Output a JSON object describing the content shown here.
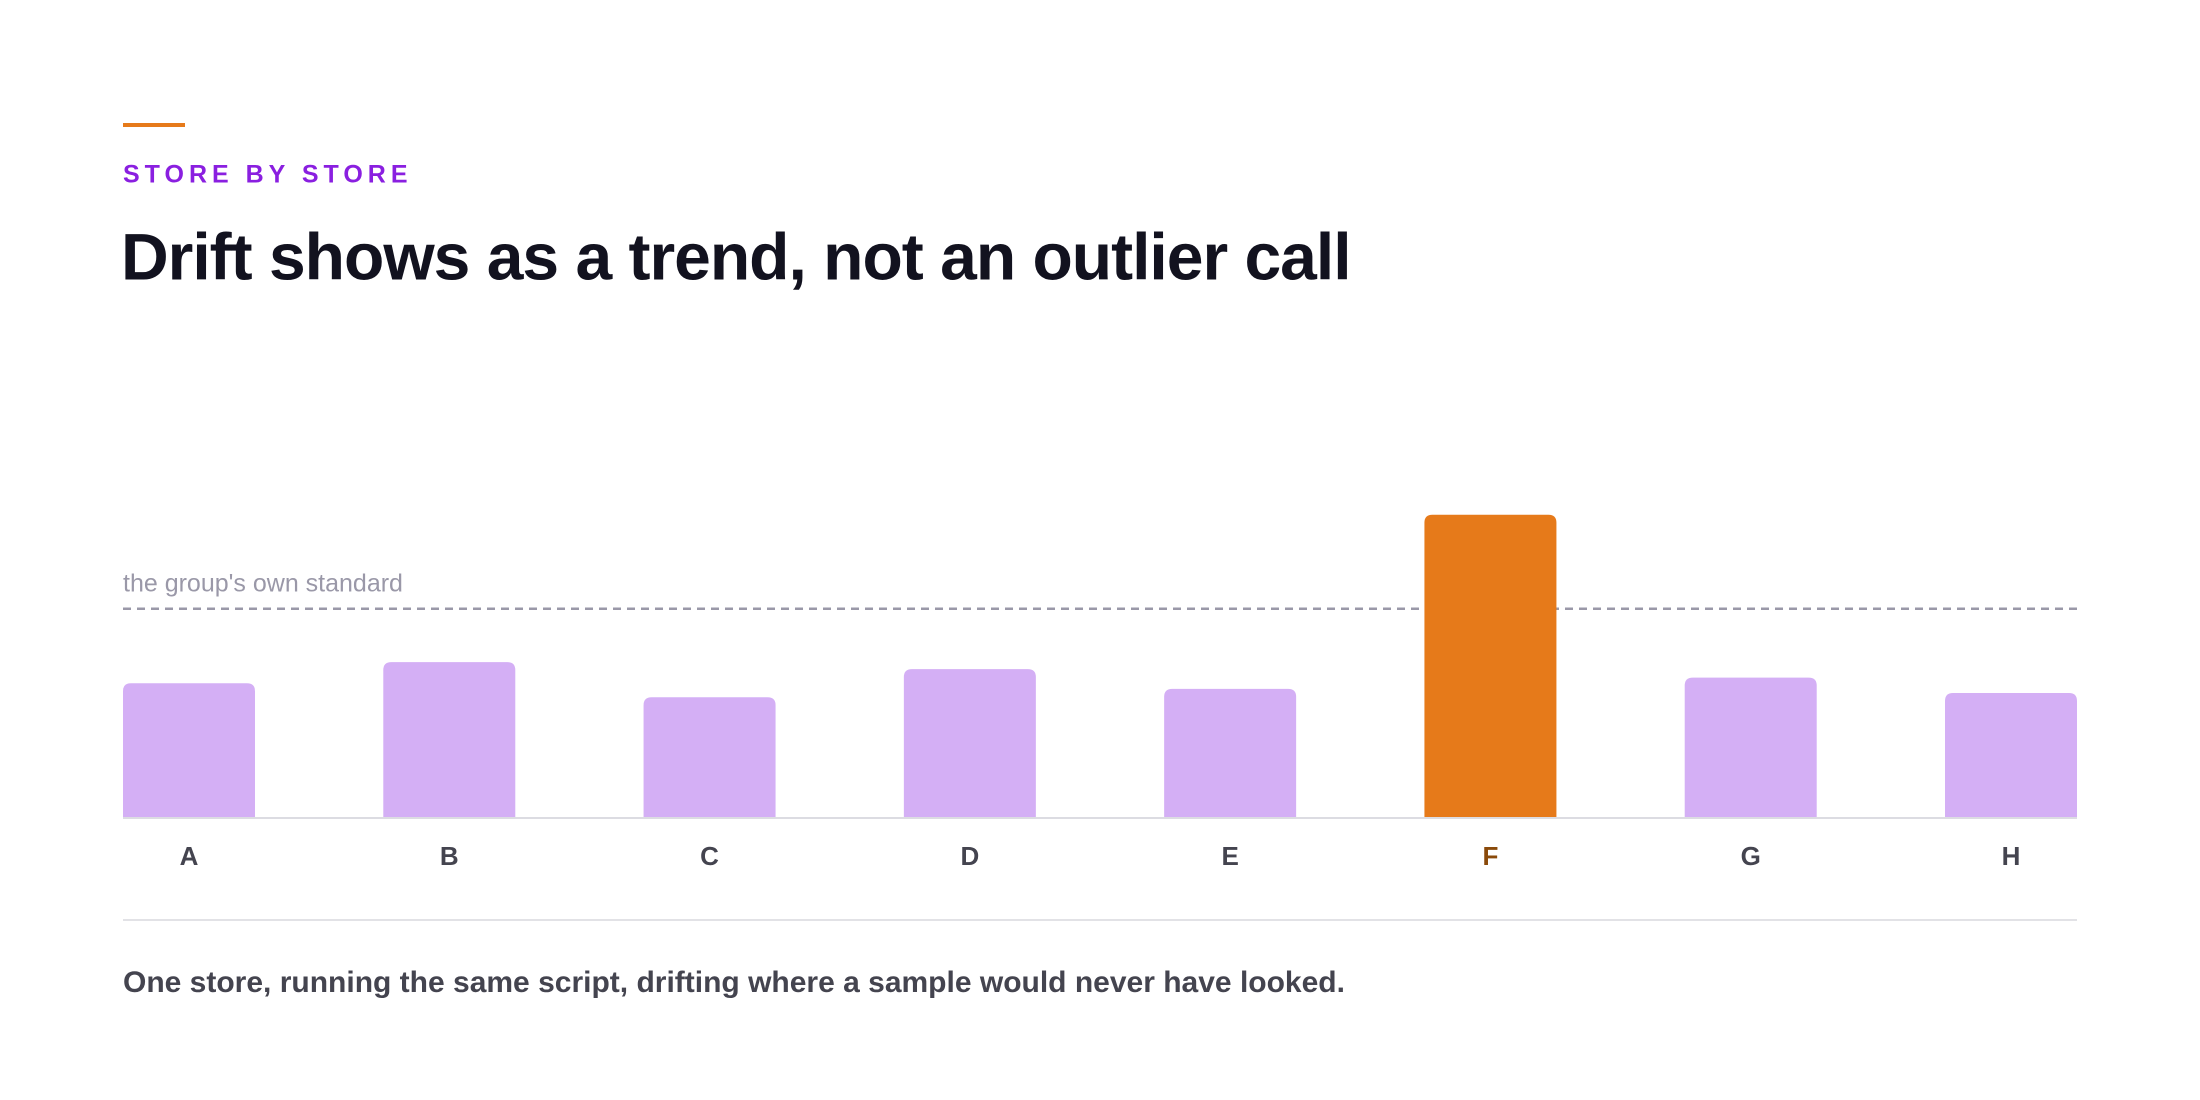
{
  "chart_data": {
    "type": "bar",
    "eyebrow": "STORE BY STORE",
    "title": "Drift shows as a trend, not an outlier call",
    "reference": {
      "label": "the group's own standard",
      "value": 149
    },
    "categories": [
      "A",
      "B",
      "C",
      "D",
      "E",
      "F",
      "G",
      "H"
    ],
    "values": [
      96,
      111,
      86,
      106,
      92,
      216,
      100,
      89
    ],
    "colors": [
      "#d4aff5",
      "#d4aff5",
      "#d4aff5",
      "#d4aff5",
      "#d4aff5",
      "#e67a1a",
      "#d4aff5",
      "#d4aff5"
    ],
    "label_colors": [
      "#44444f",
      "#44444f",
      "#44444f",
      "#44444f",
      "#44444f",
      "#8a4a0a",
      "#44444f",
      "#44444f"
    ],
    "ylim": [
      0,
      240
    ],
    "caption": "One store, running the same script, drifting where a sample would never have looked."
  }
}
